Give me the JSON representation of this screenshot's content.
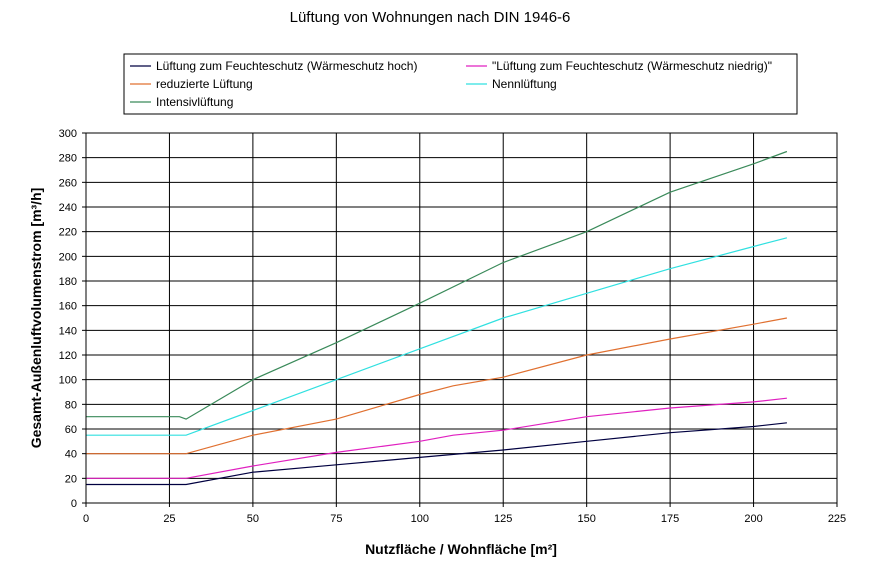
{
  "chart_data": {
    "type": "line",
    "title": "Lüftung von Wohnungen nach DIN 1946-6",
    "xlabel": "Nutzfläche / Wohnfläche [m²]",
    "ylabel": "Gesamt-Außenluftvolumenstrom [m³/h]",
    "xlim": [
      0,
      225
    ],
    "ylim": [
      0,
      300
    ],
    "xticks": [
      0,
      25,
      50,
      75,
      100,
      125,
      150,
      175,
      200,
      225
    ],
    "yticks": [
      0,
      20,
      40,
      60,
      80,
      100,
      120,
      140,
      160,
      180,
      200,
      220,
      240,
      260,
      280,
      300
    ],
    "grid": true,
    "legend_position": "top",
    "series": [
      {
        "name": "Lüftung zum Feuchteschutz (Wärmeschutz hoch)",
        "color": "#000040",
        "points": [
          [
            0,
            15
          ],
          [
            30,
            15
          ],
          [
            50,
            25
          ],
          [
            75,
            31
          ],
          [
            100,
            37
          ],
          [
            125,
            43
          ],
          [
            150,
            50
          ],
          [
            175,
            57
          ],
          [
            200,
            62
          ],
          [
            210,
            65
          ]
        ]
      },
      {
        "name": "\"Lüftung zum Feuchteschutz (Wärmeschutz niedrig)\"",
        "color": "#e020c0",
        "points": [
          [
            0,
            20
          ],
          [
            30,
            20
          ],
          [
            50,
            30
          ],
          [
            75,
            41
          ],
          [
            100,
            50
          ],
          [
            110,
            55
          ],
          [
            125,
            59
          ],
          [
            150,
            70
          ],
          [
            175,
            77
          ],
          [
            200,
            82
          ],
          [
            210,
            85
          ]
        ]
      },
      {
        "name": "reduzierte Lüftung",
        "color": "#e07030",
        "points": [
          [
            0,
            40
          ],
          [
            30,
            40
          ],
          [
            50,
            55
          ],
          [
            75,
            68
          ],
          [
            100,
            88
          ],
          [
            110,
            95
          ],
          [
            125,
            102
          ],
          [
            150,
            120
          ],
          [
            175,
            133
          ],
          [
            200,
            145
          ],
          [
            210,
            150
          ]
        ]
      },
      {
        "name": "Nennlüftung",
        "color": "#30e0e0",
        "points": [
          [
            0,
            55
          ],
          [
            30,
            55
          ],
          [
            50,
            75
          ],
          [
            75,
            100
          ],
          [
            100,
            125
          ],
          [
            125,
            150
          ],
          [
            150,
            170
          ],
          [
            175,
            190
          ],
          [
            200,
            208
          ],
          [
            210,
            215
          ]
        ]
      },
      {
        "name": "Intensivlüftung",
        "color": "#3a8a5a",
        "points": [
          [
            0,
            70
          ],
          [
            28,
            70
          ],
          [
            30,
            68
          ],
          [
            50,
            100
          ],
          [
            75,
            130
          ],
          [
            100,
            162
          ],
          [
            125,
            195
          ],
          [
            150,
            220
          ],
          [
            175,
            252
          ],
          [
            200,
            275
          ],
          [
            210,
            285
          ]
        ]
      }
    ]
  }
}
